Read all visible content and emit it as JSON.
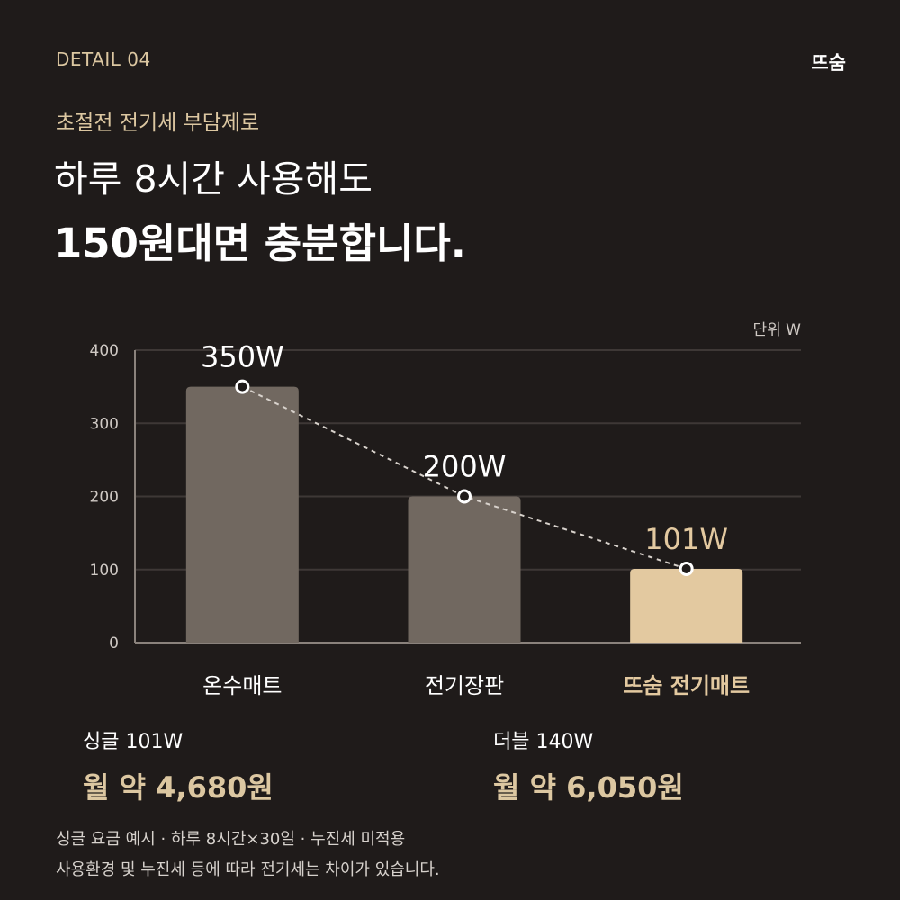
{
  "header": {
    "detail_label": "DETAIL 04",
    "brand": "뜨숨"
  },
  "subtitle": "초절전 전기세 부담제로",
  "headline": {
    "line1": "하루 8시간 사용해도",
    "line2": "150원대면 충분합니다."
  },
  "chart_data": {
    "type": "bar",
    "unit_label": "단위 W",
    "categories": [
      "온수매트",
      "전기장판",
      "뜨숨 전기매트"
    ],
    "values": [
      350,
      200,
      101
    ],
    "value_labels": [
      "350W",
      "200W",
      "101W"
    ],
    "highlight_index": 2,
    "ylim": [
      0,
      400
    ],
    "yticks": [
      0,
      100,
      200,
      300,
      400
    ],
    "grid": true,
    "trend_line": "dashed",
    "colors": {
      "bar": "#716860",
      "highlight": "#e3c9a0",
      "grid": "#3e3836",
      "axis": "#8a827c"
    }
  },
  "plans": [
    {
      "name": "싱글 101W",
      "price": "월 약 4,680원"
    },
    {
      "name": "더블 140W",
      "price": "월 약 6,050원"
    }
  ],
  "notes": [
    "싱글 요금 예시 · 하루 8시간×30일 · 누진세 미적용",
    "사용환경 및 누진세 등에 따라 전기세는 차이가 있습니다."
  ]
}
